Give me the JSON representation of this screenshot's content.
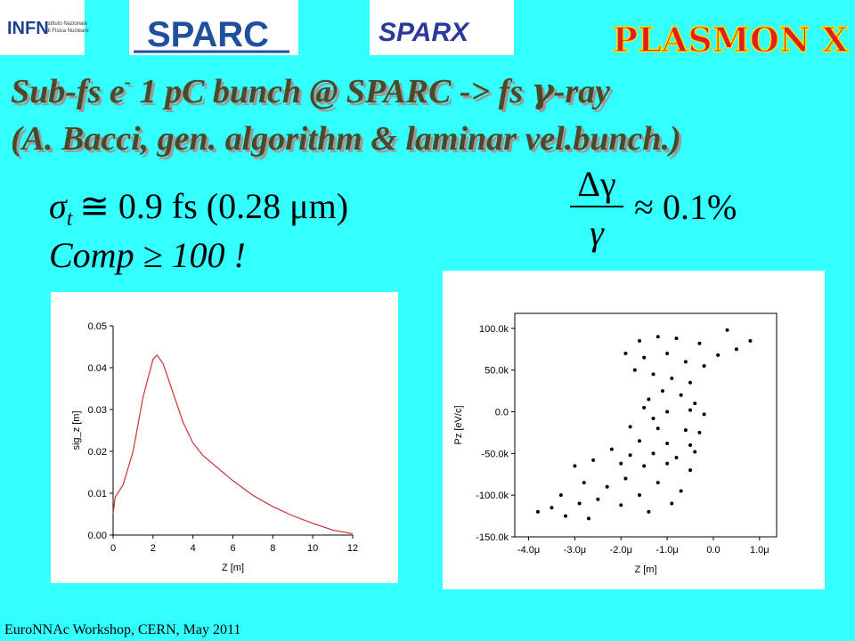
{
  "logos": {
    "infn": "INFN",
    "infn_sub": [
      "Istituto Nazionale",
      "di Fisica Nucleare"
    ],
    "sparc": "SPARC",
    "sparx": "SPARX",
    "plasmonx": "PLASMON X"
  },
  "title": {
    "line1": {
      "a": "Sub-fs e",
      "sup": "-",
      "b": " 1 pC bunch @ SPARC -> fs ",
      "gamma": "γ",
      "c": "-ray"
    },
    "line2": "(A. Bacci, gen. algorithm & laminar vel.bunch.)"
  },
  "equations": {
    "sigma": "σ",
    "sigma_sub": "t",
    "sigma_rest": "≅ 0.9  fs (0.28  μm)",
    "comp": "Comp ≥ 100 !",
    "delta_num": "Δγ",
    "delta_den": "γ",
    "delta_rest": "≈ 0.1%"
  },
  "footer": "EuroNNAc Workshop, CERN, May 2011",
  "chart_data": [
    {
      "type": "line",
      "xlabel": "Z [m]",
      "ylabel": "sig_z [m]",
      "color": "#cc3333",
      "x": [
        0,
        0.1,
        0.5,
        1,
        1.5,
        2,
        2.2,
        2.5,
        3,
        3.5,
        4,
        4.5,
        5,
        6,
        7,
        8,
        9,
        10,
        11,
        12
      ],
      "values": [
        0.005,
        0.009,
        0.012,
        0.02,
        0.033,
        0.042,
        0.043,
        0.041,
        0.034,
        0.027,
        0.022,
        0.019,
        0.017,
        0.013,
        0.0095,
        0.0068,
        0.0046,
        0.0028,
        0.0012,
        0.0003
      ],
      "xlim": [
        0,
        12
      ],
      "ylim": [
        0,
        0.05
      ],
      "xticks": [
        0,
        2,
        4,
        6,
        8,
        10,
        12
      ],
      "yticks": [
        {
          "value": 0,
          "label": "0.00"
        },
        {
          "value": 0.01,
          "label": "0.01"
        },
        {
          "value": 0.02,
          "label": "0.02"
        },
        {
          "value": 0.03,
          "label": "0.03"
        },
        {
          "value": 0.04,
          "label": "0.04"
        },
        {
          "value": 0.05,
          "label": "0.05"
        }
      ]
    },
    {
      "type": "scatter",
      "xlabel": "Z [m]",
      "ylabel": "Pz [eV/c]",
      "color": "#000000",
      "x": [
        -1.6e-06,
        -1.2e-06,
        -8e-07,
        -3e-07,
        3e-07,
        8e-07,
        5e-07,
        -1.9e-06,
        -1.5e-06,
        -1e-06,
        -6e-07,
        -2e-07,
        1e-07,
        -1.7e-06,
        -1.3e-06,
        -9e-07,
        -5e-07,
        -1.1e-06,
        -7e-07,
        -1.4e-06,
        -4e-07,
        -1.5e-06,
        -1e-06,
        -5e-07,
        -2e-07,
        -1.3e-06,
        -1.8e-06,
        -1.2e-06,
        -6e-07,
        -3e-07,
        -1.6e-06,
        -1e-06,
        -5e-07,
        -2.2e-06,
        -1.8e-06,
        -1.3e-06,
        -8e-07,
        -4e-07,
        -2.6e-06,
        -2e-06,
        -1.5e-06,
        -1e-06,
        -5e-07,
        -3e-06,
        -2.8e-06,
        -2.3e-06,
        -1.9e-06,
        -1.2e-06,
        -7e-07,
        -3.3e-06,
        -2.9e-06,
        -2.5e-06,
        -2e-06,
        -1.6e-06,
        -3.8e-06,
        -3.5e-06,
        -3.2e-06,
        -2.7e-06,
        -1.4e-06,
        -9e-07
      ],
      "values": [
        85000,
        90000,
        88000,
        82000,
        98000,
        85000,
        75000,
        70000,
        65000,
        70000,
        60000,
        55000,
        68000,
        50000,
        45000,
        40000,
        35000,
        25000,
        20000,
        15000,
        10000,
        5000,
        0,
        2000,
        -3000,
        -8000,
        -18000,
        -20000,
        -22000,
        -25000,
        -35000,
        -38000,
        -40000,
        -45000,
        -52000,
        -50000,
        -55000,
        -48000,
        -58000,
        -62000,
        -65000,
        -62000,
        -70000,
        -65000,
        -85000,
        -90000,
        -80000,
        -85000,
        -95000,
        -100000,
        -110000,
        -105000,
        -112000,
        -100000,
        -120000,
        -115000,
        -125000,
        -128000,
        -120000,
        -110000
      ],
      "xlim": [
        -4.3e-06,
        1.37e-06
      ],
      "ylim": [
        -150000,
        118000
      ],
      "xticks": [
        {
          "value": -4e-06,
          "label": "-4.0μ"
        },
        {
          "value": -3e-06,
          "label": "-3.0μ"
        },
        {
          "value": -2e-06,
          "label": "-2.0μ"
        },
        {
          "value": -1e-06,
          "label": "-1.0μ"
        },
        {
          "value": 0,
          "label": "0.0"
        },
        {
          "value": 1e-06,
          "label": "1.0μ"
        }
      ],
      "yticks": [
        {
          "value": -150000,
          "label": "-150.0k"
        },
        {
          "value": -100000,
          "label": "-100.0k"
        },
        {
          "value": -50000,
          "label": "-50.0k"
        },
        {
          "value": 0,
          "label": "0.0"
        },
        {
          "value": 50000,
          "label": "50.0k"
        },
        {
          "value": 100000,
          "label": "100.0k"
        }
      ]
    }
  ]
}
